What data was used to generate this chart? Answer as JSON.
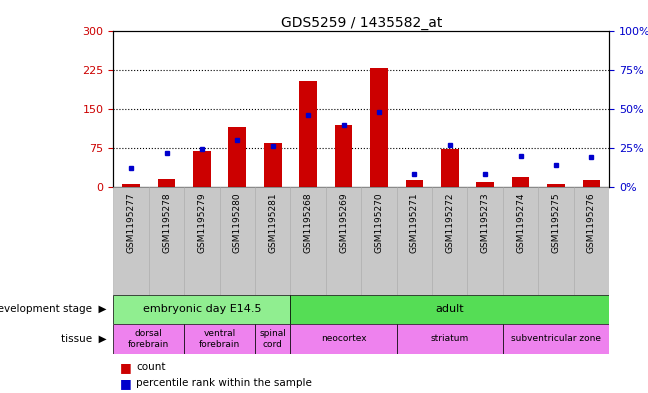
{
  "title": "GDS5259 / 1435582_at",
  "samples": [
    "GSM1195277",
    "GSM1195278",
    "GSM1195279",
    "GSM1195280",
    "GSM1195281",
    "GSM1195268",
    "GSM1195269",
    "GSM1195270",
    "GSM1195271",
    "GSM1195272",
    "GSM1195273",
    "GSM1195274",
    "GSM1195275",
    "GSM1195276"
  ],
  "counts": [
    5,
    15,
    68,
    115,
    85,
    205,
    120,
    230,
    12,
    72,
    10,
    18,
    5,
    12
  ],
  "percentiles": [
    12,
    22,
    24,
    30,
    26,
    46,
    40,
    48,
    8,
    27,
    8,
    20,
    14,
    19
  ],
  "ylim_left": [
    0,
    300
  ],
  "ylim_right": [
    0,
    100
  ],
  "yticks_left": [
    0,
    75,
    150,
    225,
    300
  ],
  "yticks_right": [
    0,
    25,
    50,
    75,
    100
  ],
  "ytick_labels_right": [
    "0%",
    "25%",
    "50%",
    "75%",
    "100%"
  ],
  "bar_color": "#cc0000",
  "dot_color": "#0000cc",
  "background_color": "#ffffff",
  "left_axis_color": "#cc0000",
  "right_axis_color": "#0000cc",
  "bar_width": 0.5,
  "xticklabel_bg": "#c8c8c8",
  "dev_stage_groups": [
    {
      "label": "embryonic day E14.5",
      "start": 0,
      "end": 5,
      "color": "#90ee90"
    },
    {
      "label": "adult",
      "start": 5,
      "end": 14,
      "color": "#55dd55"
    }
  ],
  "tissue_groups": [
    {
      "label": "dorsal\nforebrain",
      "start": 0,
      "end": 2,
      "color": "#ee82ee"
    },
    {
      "label": "ventral\nforebrain",
      "start": 2,
      "end": 4,
      "color": "#ee82ee"
    },
    {
      "label": "spinal\ncord",
      "start": 4,
      "end": 5,
      "color": "#ee82ee"
    },
    {
      "label": "neocortex",
      "start": 5,
      "end": 8,
      "color": "#ee82ee"
    },
    {
      "label": "striatum",
      "start": 8,
      "end": 11,
      "color": "#ee82ee"
    },
    {
      "label": "subventricular zone",
      "start": 11,
      "end": 14,
      "color": "#ee82ee"
    }
  ],
  "dev_stage_label": "development stage",
  "tissue_label": "tissue",
  "legend_count_label": "count",
  "legend_pct_label": "percentile rank within the sample"
}
